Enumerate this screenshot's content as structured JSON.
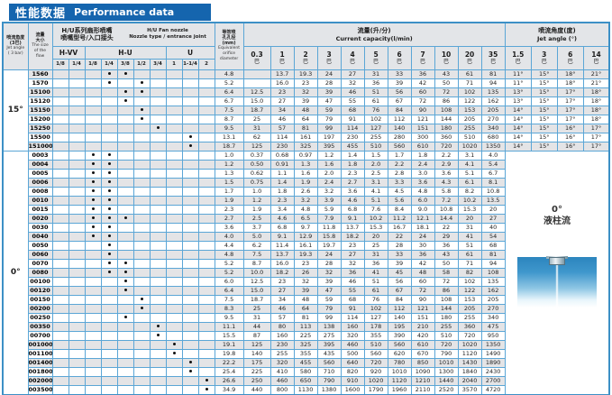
{
  "title": {
    "zh": "性能数据",
    "en": "Performance data"
  },
  "colors": {
    "title_bar": "#1565ae",
    "grid_border": "#5ba6d6",
    "outer_border": "#3d90c6",
    "header_bg": "#e3e5e8",
    "alt_row_bg": "#e4e4e6",
    "dot": "#111111",
    "photo_blue": "#2c85be"
  },
  "header": {
    "jet_angle_col": {
      "zh1": "喷流角度",
      "zh2": "(3巴)",
      "en1": "Jet angle",
      "en2": "( 3 bar)"
    },
    "flow_col": {
      "zh1": "流量",
      "zh2": "大小",
      "en1": "The size",
      "en2": "of the",
      "en3": "flow"
    },
    "nozzle_block": {
      "zh1": "H/U系列扇形喷嘴",
      "zh2": "喷嘴型号/入口接头",
      "en1": "H/U  Fan nozzle",
      "en2": "Nozzle type / entrance joint"
    },
    "nozzle_types": [
      {
        "label": "H-VV",
        "cols": [
          "1/8",
          "1/4"
        ]
      },
      {
        "label": "H-U",
        "cols": [
          "1/8",
          "1/4",
          "3/8",
          "1/2",
          "3/4"
        ]
      },
      {
        "label": "U",
        "cols": [
          "1",
          "1-1/4",
          "2"
        ]
      }
    ],
    "orifice_col": {
      "zh1": "等效喷",
      "zh2": "孔孔径",
      "zh3": "(mm)",
      "en1": "Equivalent",
      "en2": "orifice",
      "en3": "diameter"
    },
    "capacity_block": {
      "zh": "流量(升/分)",
      "en": "Current capacity(l/min)"
    },
    "jet_block": {
      "zh": "喷流角度(度)",
      "en": "Jet angle (°)"
    },
    "pressure_unit": "巴",
    "capacity_pressures": [
      "0.3",
      "1",
      "2",
      "3",
      "4",
      "5",
      "6",
      "7",
      "10",
      "20",
      "35"
    ],
    "jet_pressures": [
      "1.5",
      "3",
      "6",
      "14"
    ]
  },
  "groups": [
    {
      "angle": "15°",
      "rows": [
        {
          "flow": "1560",
          "dots": [
            3,
            4
          ],
          "orifice": "4.8",
          "cap": [
            "",
            "13.7",
            "19.3",
            "24",
            "27",
            "31",
            "33",
            "36",
            "43",
            "61",
            "81"
          ],
          "jet": [
            "11°",
            "15°",
            "18°",
            "21°"
          ]
        },
        {
          "flow": "1570",
          "dots": [
            3,
            5
          ],
          "orifice": "5.2",
          "cap": [
            "",
            "16.0",
            "23",
            "28",
            "32",
            "36",
            "39",
            "42",
            "50",
            "71",
            "94"
          ],
          "jet": [
            "11°",
            "15°",
            "18°",
            "21°"
          ]
        },
        {
          "flow": "15100",
          "dots": [
            4,
            5
          ],
          "orifice": "6.4",
          "cap": [
            "12.5",
            "23",
            "32",
            "39",
            "46",
            "51",
            "56",
            "60",
            "72",
            "102",
            "135"
          ],
          "jet": [
            "13°",
            "15°",
            "17°",
            "18°"
          ]
        },
        {
          "flow": "15120",
          "dots": [
            4
          ],
          "orifice": "6.7",
          "cap": [
            "15.0",
            "27",
            "39",
            "47",
            "55",
            "61",
            "67",
            "72",
            "86",
            "122",
            "162"
          ],
          "jet": [
            "13°",
            "15°",
            "17°",
            "18°"
          ]
        },
        {
          "flow": "15150",
          "dots": [
            5
          ],
          "orifice": "7.5",
          "cap": [
            "18.7",
            "34",
            "48",
            "59",
            "68",
            "76",
            "84",
            "90",
            "108",
            "153",
            "205"
          ],
          "jet": [
            "14°",
            "15°",
            "17°",
            "18°"
          ]
        },
        {
          "flow": "15200",
          "dots": [
            5
          ],
          "orifice": "8.7",
          "cap": [
            "25",
            "46",
            "64",
            "79",
            "91",
            "102",
            "112",
            "121",
            "144",
            "205",
            "270"
          ],
          "jet": [
            "14°",
            "15°",
            "17°",
            "18°"
          ]
        },
        {
          "flow": "15250",
          "dots": [
            6
          ],
          "orifice": "9.5",
          "cap": [
            "31",
            "57",
            "81",
            "99",
            "114",
            "127",
            "140",
            "151",
            "180",
            "255",
            "340"
          ],
          "jet": [
            "14°",
            "15°",
            "16°",
            "17°"
          ]
        },
        {
          "flow": "15500",
          "dots": [
            8
          ],
          "orifice": "13.1",
          "cap": [
            "62",
            "114",
            "161",
            "197",
            "230",
            "255",
            "280",
            "300",
            "360",
            "510",
            "680"
          ],
          "jet": [
            "14°",
            "15°",
            "16°",
            "17°"
          ]
        },
        {
          "flow": "151000",
          "dots": [
            8
          ],
          "orifice": "18.7",
          "cap": [
            "125",
            "230",
            "325",
            "395",
            "455",
            "510",
            "560",
            "610",
            "720",
            "1020",
            "1350"
          ],
          "jet": [
            "14°",
            "15°",
            "16°",
            "17°"
          ]
        }
      ]
    },
    {
      "angle": "0°",
      "panel": {
        "line1": "0°",
        "line2": "液柱流"
      },
      "rows": [
        {
          "flow": "0003",
          "dots": [
            2,
            3
          ],
          "orifice": "1.0",
          "cap": [
            "0.37",
            "0.68",
            "0.97",
            "1.2",
            "1.4",
            "1.5",
            "1.7",
            "1.8",
            "2.2",
            "3.1",
            "4.0"
          ]
        },
        {
          "flow": "0004",
          "dots": [
            2,
            3
          ],
          "orifice": "1.2",
          "cap": [
            "0.50",
            "0.91",
            "1.3",
            "1.6",
            "1.8",
            "2.0",
            "2.2",
            "2.4",
            "2.9",
            "4.1",
            "5.4"
          ]
        },
        {
          "flow": "0005",
          "dots": [
            2,
            3
          ],
          "orifice": "1.3",
          "cap": [
            "0.62",
            "1.1",
            "1.6",
            "2.0",
            "2.3",
            "2.5",
            "2.8",
            "3.0",
            "3.6",
            "5.1",
            "6.7"
          ]
        },
        {
          "flow": "0006",
          "dots": [
            2,
            3
          ],
          "orifice": "1.5",
          "cap": [
            "0.75",
            "1.4",
            "1.9",
            "2.4",
            "2.7",
            "3.1",
            "3.3",
            "3.6",
            "4.3",
            "6.1",
            "8.1"
          ]
        },
        {
          "flow": "0008",
          "dots": [
            2,
            3
          ],
          "orifice": "1.7",
          "cap": [
            "1.0",
            "1.8",
            "2.6",
            "3.2",
            "3.6",
            "4.1",
            "4.5",
            "4.8",
            "5.8",
            "8.2",
            "10.8"
          ]
        },
        {
          "flow": "0010",
          "dots": [
            2,
            3
          ],
          "orifice": "1.9",
          "cap": [
            "1.2",
            "2.3",
            "3.2",
            "3.9",
            "4.6",
            "5.1",
            "5.6",
            "6.0",
            "7.2",
            "10.2",
            "13.5"
          ]
        },
        {
          "flow": "0015",
          "dots": [
            2,
            3
          ],
          "orifice": "2.3",
          "cap": [
            "1.9",
            "3.4",
            "4.8",
            "5.9",
            "6.8",
            "7.6",
            "8.4",
            "9.0",
            "10.8",
            "15.3",
            "20"
          ]
        },
        {
          "flow": "0020",
          "dots": [
            2,
            3,
            4
          ],
          "orifice": "2.7",
          "cap": [
            "2.5",
            "4.6",
            "6.5",
            "7.9",
            "9.1",
            "10.2",
            "11.2",
            "12.1",
            "14.4",
            "20",
            "27"
          ]
        },
        {
          "flow": "0030",
          "dots": [
            2,
            3
          ],
          "orifice": "3.6",
          "cap": [
            "3.7",
            "6.8",
            "9.7",
            "11.8",
            "13.7",
            "15.3",
            "16.7",
            "18.1",
            "22",
            "31",
            "40"
          ]
        },
        {
          "flow": "0040",
          "dots": [
            2,
            3
          ],
          "orifice": "4.0",
          "cap": [
            "5.0",
            "9.1",
            "12.9",
            "15.8",
            "18.2",
            "20",
            "22",
            "24",
            "29",
            "41",
            "54"
          ]
        },
        {
          "flow": "0050",
          "dots": [
            3
          ],
          "orifice": "4.4",
          "cap": [
            "6.2",
            "11.4",
            "16.1",
            "19.7",
            "23",
            "25",
            "28",
            "30",
            "36",
            "51",
            "68"
          ]
        },
        {
          "flow": "0060",
          "dots": [
            3
          ],
          "orifice": "4.8",
          "cap": [
            "7.5",
            "13.7",
            "19.3",
            "24",
            "27",
            "31",
            "33",
            "36",
            "43",
            "61",
            "81"
          ]
        },
        {
          "flow": "0070",
          "dots": [
            3,
            4
          ],
          "orifice": "5.2",
          "cap": [
            "8.7",
            "16.0",
            "23",
            "28",
            "32",
            "36",
            "39",
            "42",
            "50",
            "71",
            "94"
          ]
        },
        {
          "flow": "0080",
          "dots": [
            3,
            4
          ],
          "orifice": "5.2",
          "cap": [
            "10.0",
            "18.2",
            "26",
            "32",
            "36",
            "41",
            "45",
            "48",
            "58",
            "82",
            "108"
          ]
        },
        {
          "flow": "00100",
          "dots": [
            4
          ],
          "orifice": "6.0",
          "cap": [
            "12.5",
            "23",
            "32",
            "39",
            "46",
            "51",
            "56",
            "60",
            "72",
            "102",
            "135"
          ]
        },
        {
          "flow": "00120",
          "dots": [
            4
          ],
          "orifice": "6.4",
          "cap": [
            "15.0",
            "27",
            "39",
            "47",
            "55",
            "61",
            "67",
            "72",
            "86",
            "122",
            "162"
          ]
        },
        {
          "flow": "00150",
          "dots": [
            5
          ],
          "orifice": "7.5",
          "cap": [
            "18.7",
            "34",
            "48",
            "59",
            "68",
            "76",
            "84",
            "90",
            "108",
            "153",
            "205"
          ]
        },
        {
          "flow": "00200",
          "dots": [
            5
          ],
          "orifice": "8.3",
          "cap": [
            "25",
            "46",
            "64",
            "79",
            "91",
            "102",
            "112",
            "121",
            "144",
            "205",
            "270"
          ]
        },
        {
          "flow": "00250",
          "dots": [
            4
          ],
          "orifice": "9.5",
          "cap": [
            "31",
            "57",
            "81",
            "99",
            "114",
            "127",
            "140",
            "151",
            "180",
            "255",
            "340"
          ]
        },
        {
          "flow": "00350",
          "dots": [
            6
          ],
          "orifice": "11.1",
          "cap": [
            "44",
            "80",
            "113",
            "138",
            "160",
            "178",
            "195",
            "210",
            "255",
            "360",
            "475"
          ]
        },
        {
          "flow": "00700",
          "dots": [
            6
          ],
          "orifice": "15.5",
          "cap": [
            "87",
            "160",
            "225",
            "275",
            "320",
            "355",
            "390",
            "420",
            "510",
            "720",
            "950"
          ]
        },
        {
          "flow": "001000",
          "dots": [
            7
          ],
          "orifice": "19.1",
          "cap": [
            "125",
            "230",
            "325",
            "395",
            "460",
            "510",
            "560",
            "610",
            "720",
            "1020",
            "1350"
          ]
        },
        {
          "flow": "001100",
          "dots": [
            7
          ],
          "orifice": "19.8",
          "cap": [
            "140",
            "255",
            "355",
            "435",
            "500",
            "560",
            "620",
            "670",
            "790",
            "1120",
            "1490"
          ]
        },
        {
          "flow": "001400",
          "dots": [
            8
          ],
          "orifice": "22.2",
          "cap": [
            "175",
            "320",
            "455",
            "560",
            "640",
            "720",
            "780",
            "850",
            "1010",
            "1430",
            "1890"
          ]
        },
        {
          "flow": "001800",
          "dots": [
            8
          ],
          "orifice": "25.4",
          "cap": [
            "225",
            "410",
            "580",
            "710",
            "820",
            "920",
            "1010",
            "1090",
            "1300",
            "1840",
            "2430"
          ]
        },
        {
          "flow": "002000",
          "dots": [
            9
          ],
          "orifice": "26.6",
          "cap": [
            "250",
            "460",
            "650",
            "790",
            "910",
            "1020",
            "1120",
            "1210",
            "1440",
            "2040",
            "2700"
          ]
        },
        {
          "flow": "003500",
          "dots": [
            9
          ],
          "orifice": "34.9",
          "cap": [
            "440",
            "800",
            "1130",
            "1380",
            "1600",
            "1790",
            "1960",
            "2110",
            "2520",
            "3570",
            "4720"
          ]
        }
      ]
    }
  ]
}
